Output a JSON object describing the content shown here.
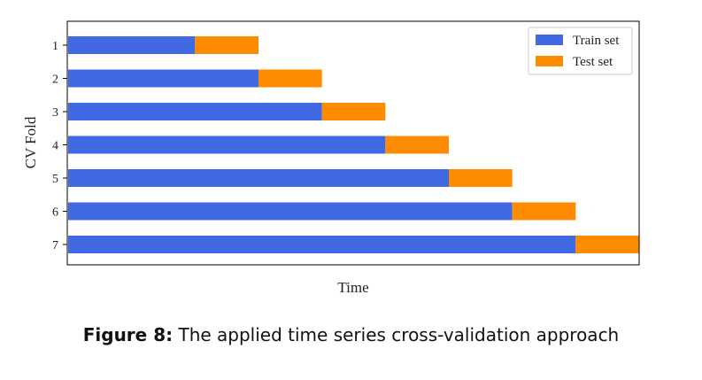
{
  "chart_data": {
    "type": "bar",
    "orientation": "horizontal",
    "stacked": true,
    "categories": [
      "1",
      "2",
      "3",
      "4",
      "5",
      "6",
      "7"
    ],
    "series": [
      {
        "name": "Train set",
        "color": "#4169e1",
        "values": [
          2,
          3,
          4,
          5,
          6,
          7,
          8
        ]
      },
      {
        "name": "Test set",
        "color": "#ff8c00",
        "values": [
          1,
          1,
          1,
          1,
          1,
          1,
          1
        ]
      }
    ],
    "xlabel": "Time",
    "ylabel": "CV Fold",
    "xlim": [
      0,
      9
    ],
    "grid": false,
    "legend_position": "top-right",
    "x_ticks_shown": false
  },
  "caption": {
    "label": "Figure 8:",
    "text": " The applied time series cross-validation approach"
  }
}
